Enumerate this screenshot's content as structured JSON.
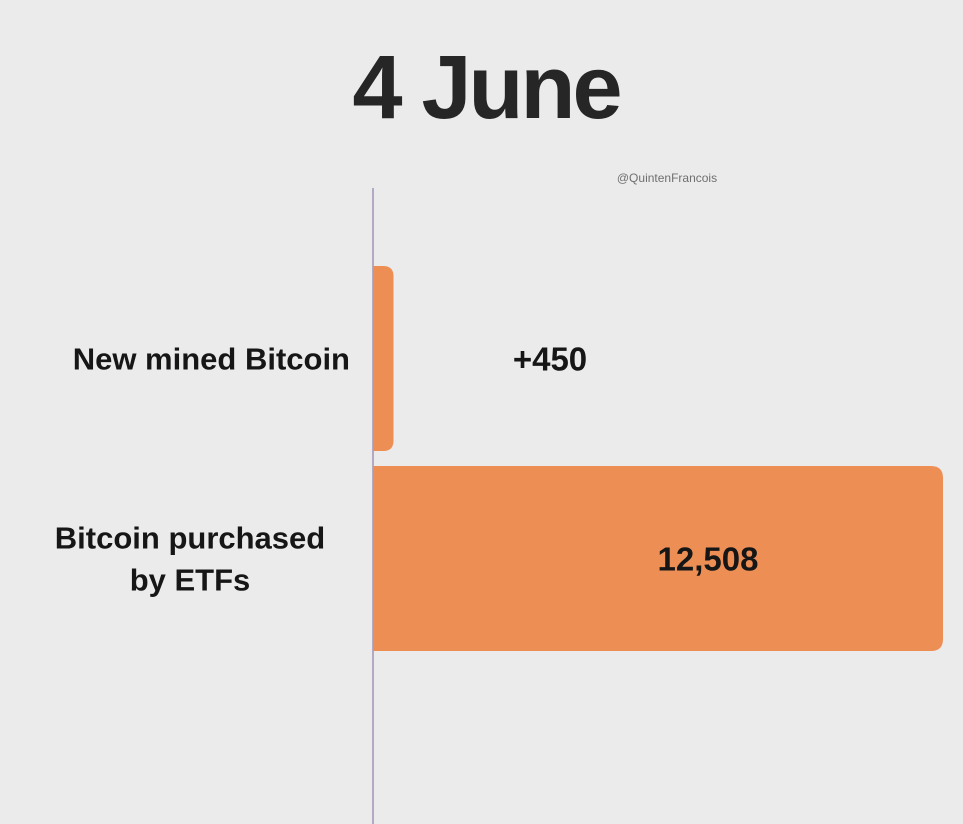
{
  "chart_data": {
    "type": "bar",
    "orientation": "horizontal",
    "title": "4 June",
    "watermark": "@QuintenFrancois",
    "categories": [
      [
        "New mined Bitcoin"
      ],
      [
        "Bitcoin purchased",
        "by ETFs"
      ]
    ],
    "values": [
      450,
      12508
    ],
    "value_labels": [
      "+450",
      "12,508"
    ],
    "xlim": [
      0,
      12508
    ],
    "grid": false,
    "legend": "none",
    "colors": {
      "bar": "#ed8f55",
      "background": "#ecebec",
      "axis": "#b3a9c2",
      "text": "#161616"
    }
  }
}
